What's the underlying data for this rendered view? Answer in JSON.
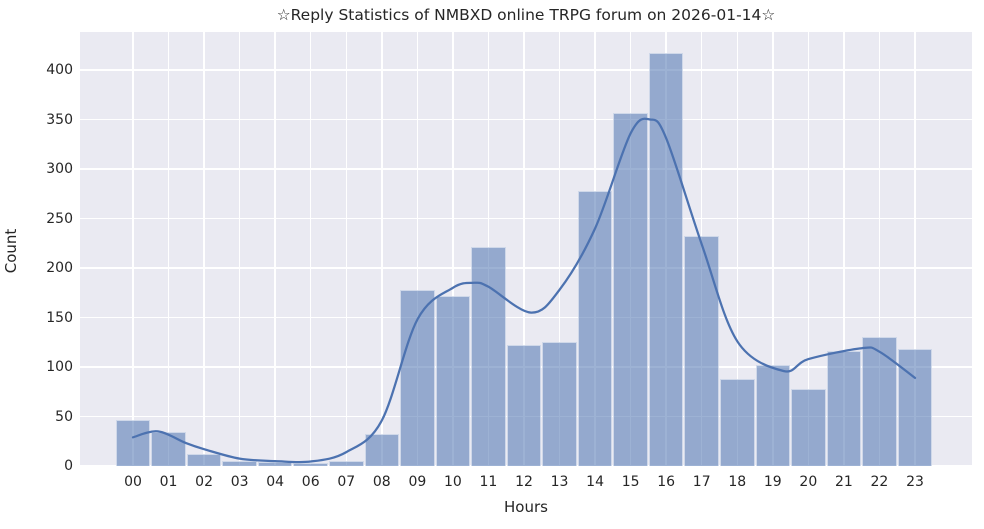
{
  "chart_data": {
    "type": "bar",
    "subtype": "histogram_with_kde",
    "title": "☆Reply Statistics of NMBXD online TRPG forum on 2026-01-14☆",
    "xlabel": "Hours",
    "ylabel": "Count",
    "categories": [
      "00",
      "01",
      "02",
      "03",
      "04",
      "06",
      "07",
      "08",
      "09",
      "10",
      "11",
      "12",
      "13",
      "14",
      "15",
      "16",
      "17",
      "18",
      "19",
      "20",
      "21",
      "22",
      "23"
    ],
    "values": [
      46,
      34,
      12,
      5,
      4,
      3,
      5,
      32,
      178,
      172,
      221,
      122,
      125,
      278,
      357,
      417,
      232,
      88,
      102,
      78,
      116,
      130,
      118
    ],
    "yticks": [
      0,
      50,
      100,
      150,
      200,
      250,
      300,
      350,
      400
    ],
    "ylim": [
      0,
      438
    ],
    "grid": "on",
    "legend": "none",
    "kde_curve_points": [
      [
        0,
        29
      ],
      [
        0.7,
        35
      ],
      [
        1.5,
        23
      ],
      [
        2,
        17
      ],
      [
        3,
        7.5
      ],
      [
        4,
        5
      ],
      [
        5,
        4.5
      ],
      [
        6,
        14
      ],
      [
        7,
        46
      ],
      [
        8,
        148
      ],
      [
        9,
        180
      ],
      [
        9.6,
        185
      ],
      [
        10,
        181
      ],
      [
        11.2,
        155
      ],
      [
        12,
        178
      ],
      [
        13,
        240
      ],
      [
        14,
        336
      ],
      [
        14.55,
        350
      ],
      [
        15,
        331
      ],
      [
        16,
        224
      ],
      [
        17,
        126
      ],
      [
        18.3,
        96
      ],
      [
        19,
        108
      ],
      [
        20.5,
        119
      ],
      [
        21,
        115.5
      ],
      [
        22,
        89
      ]
    ],
    "colors": {
      "plot_background": "#eaeaf2",
      "grid_line": "#ffffff",
      "bar_fill_base": "#4c72b0",
      "bar_fill_alpha": 0.55,
      "kde_line": "#4c72b0",
      "text": "#262626"
    }
  }
}
